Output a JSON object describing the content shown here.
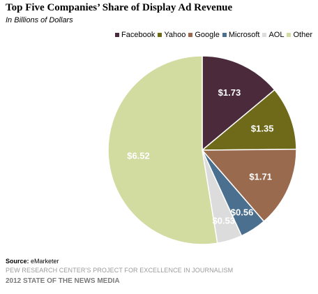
{
  "header": {
    "title": "Top Five Companies’ Share of Display Ad Revenue",
    "subtitle": "In Billions of Dollars"
  },
  "chart_data": {
    "type": "pie",
    "title": "Top Five Companies’ Share of Display Ad Revenue",
    "subtitle": "In Billions of Dollars",
    "legend_position": "top-right",
    "start_angle_deg": 0,
    "direction": "clockwise",
    "slices": [
      {
        "label": "Facebook",
        "value": 1.73,
        "value_label": "$1.73",
        "color": "#4a2a3b"
      },
      {
        "label": "Yahoo",
        "value": 1.35,
        "value_label": "$1.35",
        "color": "#6f6a1a"
      },
      {
        "label": "Google",
        "value": 1.71,
        "value_label": "$1.71",
        "color": "#9a6a4e"
      },
      {
        "label": "Microsoft",
        "value": 0.56,
        "value_label": "$0.56",
        "color": "#4a6f8f"
      },
      {
        "label": "AOL",
        "value": 0.53,
        "value_label": "$0.53",
        "color": "#dcdcdc"
      },
      {
        "label": "Other",
        "value": 6.52,
        "value_label": "$6.52",
        "color": "#d2dba0"
      }
    ]
  },
  "footer": {
    "source_label": "Source:",
    "source_value": "eMarketer",
    "org": "PEW RESEARCH CENTER’S PROJECT FOR EXCELLENCE IN JOURNALISM",
    "report": "2012 STATE OF THE NEWS MEDIA"
  }
}
